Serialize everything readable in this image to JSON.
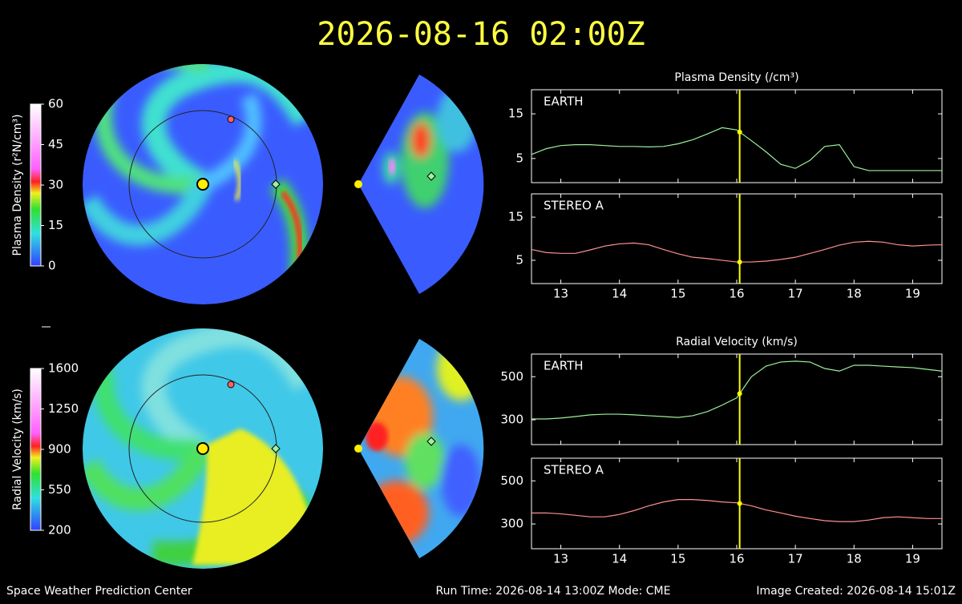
{
  "title": "2026-08-16 02:00Z",
  "footer": {
    "left": "Space Weather Prediction Center",
    "center": "Run Time: 2026-08-14 13:00Z  Mode: CME",
    "right": "Image Created: 2026-08-14 15:01Z"
  },
  "colorbars": [
    {
      "label": "Plasma Density (r²N/cm³)",
      "lim": [
        0,
        60
      ],
      "ticks": [
        0,
        15,
        30,
        45,
        60
      ]
    },
    {
      "label": "Radial Velocity (km/s)",
      "lim": [
        200,
        1600
      ],
      "ticks": [
        200,
        550,
        900,
        1250,
        1600
      ]
    }
  ],
  "chart_data": [
    {
      "type": "line",
      "title": "Plasma Density (/cm³)",
      "x": [
        12.5,
        12.75,
        13,
        13.25,
        13.5,
        13.75,
        14,
        14.25,
        14.5,
        14.75,
        15,
        15.25,
        15.5,
        15.75,
        16,
        16.25,
        16.5,
        16.75,
        17,
        17.25,
        17.5,
        17.75,
        18,
        18.25,
        18.5,
        18.75,
        19,
        19.25,
        19.5
      ],
      "series": [
        {
          "name": "EARTH",
          "color": "#9cf09c",
          "values": [
            5.9,
            7.2,
            7.9,
            8.1,
            8.1,
            7.9,
            7.7,
            7.7,
            7.6,
            7.7,
            8.3,
            9.2,
            10.5,
            11.9,
            11.4,
            9,
            6.5,
            3.7,
            2.8,
            4.6,
            7.7,
            8.1,
            3.2,
            2.3,
            2.3,
            2.3,
            2.3,
            2.3,
            2.3
          ]
        }
      ],
      "xlim": [
        12.5,
        19.5
      ],
      "xticks": [
        13,
        14,
        15,
        16,
        17,
        18,
        19
      ],
      "show_xtick_labels": false,
      "ylim": [
        -0.4,
        20.4
      ],
      "yticks": [
        5,
        15
      ],
      "cursor_x": 16.05,
      "cursor_color": "#ffff00"
    },
    {
      "type": "line",
      "x": [
        12.5,
        12.75,
        13,
        13.25,
        13.5,
        13.75,
        14,
        14.25,
        14.5,
        14.75,
        15,
        15.25,
        15.5,
        15.75,
        16,
        16.25,
        16.5,
        16.75,
        17,
        17.25,
        17.5,
        17.75,
        18,
        18.25,
        18.5,
        18.75,
        19,
        19.25,
        19.5
      ],
      "series": [
        {
          "name": "STEREO A",
          "color": "#ff9090",
          "values": [
            7.5,
            6.8,
            6.6,
            6.6,
            7.4,
            8.3,
            8.8,
            9,
            8.6,
            7.5,
            6.5,
            5.7,
            5.4,
            5,
            4.6,
            4.6,
            4.8,
            5.2,
            5.7,
            6.6,
            7.5,
            8.5,
            9.2,
            9.4,
            9.2,
            8.6,
            8.3,
            8.5,
            8.6
          ]
        }
      ],
      "xlim": [
        12.5,
        19.5
      ],
      "xticks": [
        13,
        14,
        15,
        16,
        17,
        18,
        19
      ],
      "show_xtick_labels": true,
      "ylim": [
        -0.4,
        20.4
      ],
      "yticks": [
        5,
        15
      ],
      "cursor_x": 16.05,
      "cursor_color": "#ffff00"
    },
    {
      "type": "line",
      "title": "Radial Velocity (km/s)",
      "x": [
        12.5,
        12.75,
        13,
        13.25,
        13.5,
        13.75,
        14,
        14.25,
        14.5,
        14.75,
        15,
        15.25,
        15.5,
        15.75,
        16,
        16.25,
        16.5,
        16.75,
        17,
        17.25,
        17.5,
        17.75,
        18,
        18.25,
        18.5,
        18.75,
        19,
        19.25,
        19.5
      ],
      "series": [
        {
          "name": "EARTH",
          "color": "#9cf09c",
          "values": [
            304,
            304,
            308,
            315,
            323,
            326,
            326,
            323,
            319,
            315,
            311,
            319,
            338,
            368,
            402,
            500,
            549,
            568,
            572,
            568,
            538,
            526,
            553,
            553,
            549,
            545,
            542,
            534,
            526
          ]
        }
      ],
      "xlim": [
        12.5,
        19.5
      ],
      "xticks": [
        13,
        14,
        15,
        16,
        17,
        18,
        19
      ],
      "show_xtick_labels": false,
      "ylim": [
        185,
        605
      ],
      "yticks": [
        300,
        500
      ],
      "cursor_x": 16.05,
      "cursor_color": "#ffff00"
    },
    {
      "type": "line",
      "x": [
        12.5,
        12.75,
        13,
        13.25,
        13.5,
        13.75,
        14,
        14.25,
        14.5,
        14.75,
        15,
        15.25,
        15.5,
        15.75,
        16,
        16.25,
        16.5,
        16.75,
        17,
        17.25,
        17.5,
        17.75,
        18,
        18.25,
        18.5,
        18.75,
        19,
        19.25,
        19.5
      ],
      "series": [
        {
          "name": "STEREO A",
          "color": "#ff9090",
          "values": [
            351,
            351,
            347,
            340,
            333,
            333,
            344,
            362,
            384,
            402,
            413,
            413,
            409,
            402,
            398,
            384,
            365,
            351,
            336,
            325,
            315,
            311,
            311,
            318,
            329,
            333,
            329,
            325,
            325
          ]
        }
      ],
      "xlim": [
        12.5,
        19.5
      ],
      "xticks": [
        13,
        14,
        15,
        16,
        17,
        18,
        19
      ],
      "show_xtick_labels": true,
      "ylim": [
        185,
        605
      ],
      "yticks": [
        300,
        500
      ],
      "cursor_x": 16.05,
      "cursor_color": "#ffff00"
    }
  ]
}
